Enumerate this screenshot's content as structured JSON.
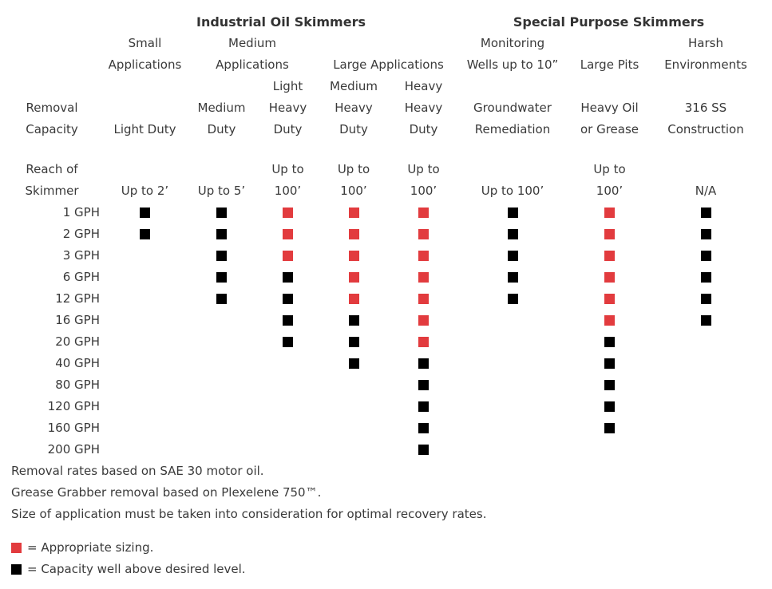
{
  "colors": {
    "red": "#e23b3e",
    "black": "#000000",
    "text": "#3a3a3a",
    "background": "#ffffff"
  },
  "header": {
    "rows": [
      {
        "cells": [
          {
            "col": 2,
            "span": 5,
            "text": "Industrial Oil Skimmers",
            "bold": true,
            "name": "industrial-skimmers-title"
          },
          {
            "col": 7,
            "span": 3,
            "text": "Special Purpose Skimmers",
            "bold": true,
            "name": "special-purpose-skimmers-title"
          }
        ]
      },
      {
        "cells": [
          {
            "col": 2,
            "text": "Small"
          },
          {
            "col": 3,
            "span": 2,
            "text": "Medium"
          },
          {
            "col": 7,
            "text": "Monitoring"
          },
          {
            "col": 9,
            "text": "Harsh"
          }
        ]
      },
      {
        "cells": [
          {
            "col": 2,
            "text": "Applications"
          },
          {
            "col": 3,
            "span": 2,
            "text": "Applications"
          },
          {
            "col": 5,
            "span": 2,
            "text": "Large Applications"
          },
          {
            "col": 7,
            "text": "Wells up to 10”"
          },
          {
            "col": 8,
            "text": "Large Pits"
          },
          {
            "col": 9,
            "text": "Environments"
          }
        ]
      },
      {
        "cells": [
          {
            "col": 4,
            "text": "Light"
          },
          {
            "col": 5,
            "text": "Medium"
          },
          {
            "col": 6,
            "text": "Heavy"
          }
        ]
      },
      {
        "cells": [
          {
            "col": 1,
            "text": "Removal"
          },
          {
            "col": 3,
            "text": "Medium"
          },
          {
            "col": 4,
            "text": "Heavy"
          },
          {
            "col": 5,
            "text": "Heavy"
          },
          {
            "col": 6,
            "text": "Heavy"
          },
          {
            "col": 7,
            "text": "Groundwater"
          },
          {
            "col": 8,
            "text": "Heavy Oil"
          },
          {
            "col": 9,
            "text": "316 SS"
          }
        ]
      },
      {
        "cells": [
          {
            "col": 1,
            "text": "Capacity"
          },
          {
            "col": 2,
            "text": "Light Duty"
          },
          {
            "col": 3,
            "text": "Duty"
          },
          {
            "col": 4,
            "text": "Duty"
          },
          {
            "col": 5,
            "text": "Duty"
          },
          {
            "col": 6,
            "text": "Duty"
          },
          {
            "col": 7,
            "text": "Remediation"
          },
          {
            "col": 8,
            "text": "or Grease"
          },
          {
            "col": 9,
            "text": "Construction"
          }
        ]
      },
      {
        "spacer": true
      },
      {
        "cells": [
          {
            "col": 1,
            "text": "Reach of"
          },
          {
            "col": 4,
            "text": "Up to"
          },
          {
            "col": 5,
            "text": "Up to"
          },
          {
            "col": 6,
            "text": "Up to"
          },
          {
            "col": 8,
            "text": "Up to"
          }
        ]
      },
      {
        "cells": [
          {
            "col": 1,
            "text": "Skimmer"
          },
          {
            "col": 2,
            "text": "Up to 2’"
          },
          {
            "col": 3,
            "text": "Up to 5’"
          },
          {
            "col": 4,
            "text": "100’"
          },
          {
            "col": 5,
            "text": "100’"
          },
          {
            "col": 6,
            "text": "100’"
          },
          {
            "col": 7,
            "text": "Up to 100’"
          },
          {
            "col": 8,
            "text": "100’"
          },
          {
            "col": 9,
            "text": "N/A"
          }
        ]
      }
    ]
  },
  "chart_data": {
    "type": "table",
    "groups": [
      "Industrial Oil Skimmers",
      "Special Purpose Skimmers"
    ],
    "row_axis_label": "Removal Capacity",
    "reach_axis_label": "Reach of Skimmer",
    "columns": [
      {
        "group": "Industrial Oil Skimmers",
        "application": "Small Applications",
        "duty": "Light Duty",
        "reach": "Up to 2’"
      },
      {
        "group": "Industrial Oil Skimmers",
        "application": "Medium Applications",
        "duty": "Medium Duty",
        "reach": "Up to 5’"
      },
      {
        "group": "Industrial Oil Skimmers",
        "application": "Medium Applications",
        "duty": "Light Heavy Duty",
        "reach": "Up to 100’"
      },
      {
        "group": "Industrial Oil Skimmers",
        "application": "Large Applications",
        "duty": "Medium Heavy Duty",
        "reach": "Up to 100’"
      },
      {
        "group": "Industrial Oil Skimmers",
        "application": "Large Applications",
        "duty": "Heavy Heavy Duty",
        "reach": "Up to 100’"
      },
      {
        "group": "Special Purpose Skimmers",
        "application": "Monitoring Wells up to 10”",
        "duty": "Groundwater Remediation",
        "reach": "Up to 100’"
      },
      {
        "group": "Special Purpose Skimmers",
        "application": "Large Pits",
        "duty": "Heavy Oil or Grease",
        "reach": "Up to 100’"
      },
      {
        "group": "Special Purpose Skimmers",
        "application": "Harsh Environments",
        "duty": "316 SS Construction",
        "reach": "N/A"
      }
    ],
    "rows": [
      {
        "label": "1 GPH",
        "cells": [
          "black",
          "black",
          "red",
          "red",
          "red",
          "black",
          "red",
          "black"
        ]
      },
      {
        "label": "2 GPH",
        "cells": [
          "black",
          "black",
          "red",
          "red",
          "red",
          "black",
          "red",
          "black"
        ]
      },
      {
        "label": "3 GPH",
        "cells": [
          null,
          "black",
          "red",
          "red",
          "red",
          "black",
          "red",
          "black"
        ]
      },
      {
        "label": "6 GPH",
        "cells": [
          null,
          "black",
          "black",
          "red",
          "red",
          "black",
          "red",
          "black"
        ]
      },
      {
        "label": "12 GPH",
        "cells": [
          null,
          "black",
          "black",
          "red",
          "red",
          "black",
          "red",
          "black"
        ]
      },
      {
        "label": "16 GPH",
        "cells": [
          null,
          null,
          "black",
          "black",
          "red",
          null,
          "red",
          "black"
        ]
      },
      {
        "label": "20 GPH",
        "cells": [
          null,
          null,
          "black",
          "black",
          "red",
          null,
          "black",
          null
        ]
      },
      {
        "label": "40 GPH",
        "cells": [
          null,
          null,
          null,
          "black",
          "black",
          null,
          "black",
          null
        ]
      },
      {
        "label": "80 GPH",
        "cells": [
          null,
          null,
          null,
          null,
          "black",
          null,
          "black",
          null
        ]
      },
      {
        "label": "120 GPH",
        "cells": [
          null,
          null,
          null,
          null,
          "black",
          null,
          "black",
          null
        ]
      },
      {
        "label": "160 GPH",
        "cells": [
          null,
          null,
          null,
          null,
          "black",
          null,
          "black",
          null
        ]
      },
      {
        "label": "200 GPH",
        "cells": [
          null,
          null,
          null,
          null,
          "black",
          null,
          null,
          null
        ]
      }
    ],
    "legend": [
      {
        "color": "#e23b3e",
        "label": "= Appropriate sizing."
      },
      {
        "color": "#000000",
        "label": "= Capacity well above desired level."
      }
    ]
  },
  "notes": [
    "Removal rates based on SAE 30 motor oil.",
    "Grease Grabber removal based on Plexelene 750™.",
    "Size of application must be taken into consideration for optimal recovery rates."
  ]
}
